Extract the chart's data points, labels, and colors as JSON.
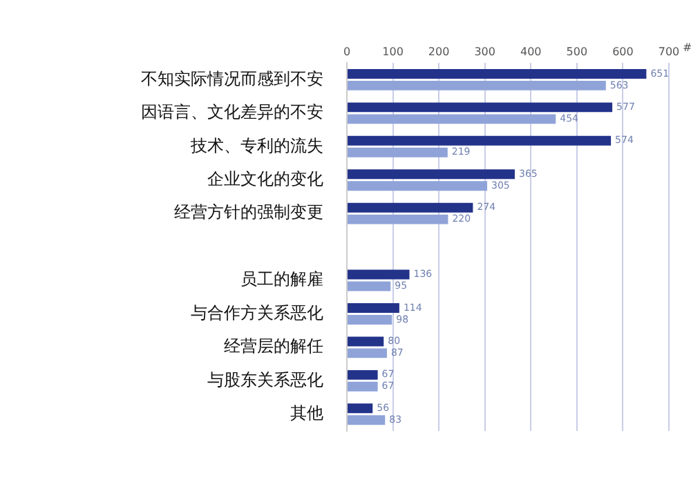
{
  "chart_data": {
    "type": "bar",
    "orientation": "horizontal",
    "xlabel": "#",
    "categories": [
      "不知实际情况而感到不安",
      "因语言、文化差异的不安",
      "技术、专利的流失",
      "企业文化的变化",
      "经营方针的强制变更",
      null,
      "员工的解雇",
      "与合作方关系恶化",
      "经营层的解任",
      "与股东关系恶化",
      "其他"
    ],
    "series": [
      {
        "color": "#23338a",
        "values": [
          651,
          577,
          574,
          365,
          274,
          null,
          136,
          114,
          80,
          67,
          56
        ]
      },
      {
        "color": "#8fa3d8",
        "values": [
          563,
          454,
          219,
          305,
          220,
          null,
          95,
          98,
          87,
          67,
          83
        ]
      }
    ],
    "xlim": [
      0,
      700
    ],
    "xticks": [
      0,
      100,
      200,
      300,
      400,
      500,
      600,
      700
    ],
    "grid": "x",
    "data_labels": true,
    "legend": false
  }
}
